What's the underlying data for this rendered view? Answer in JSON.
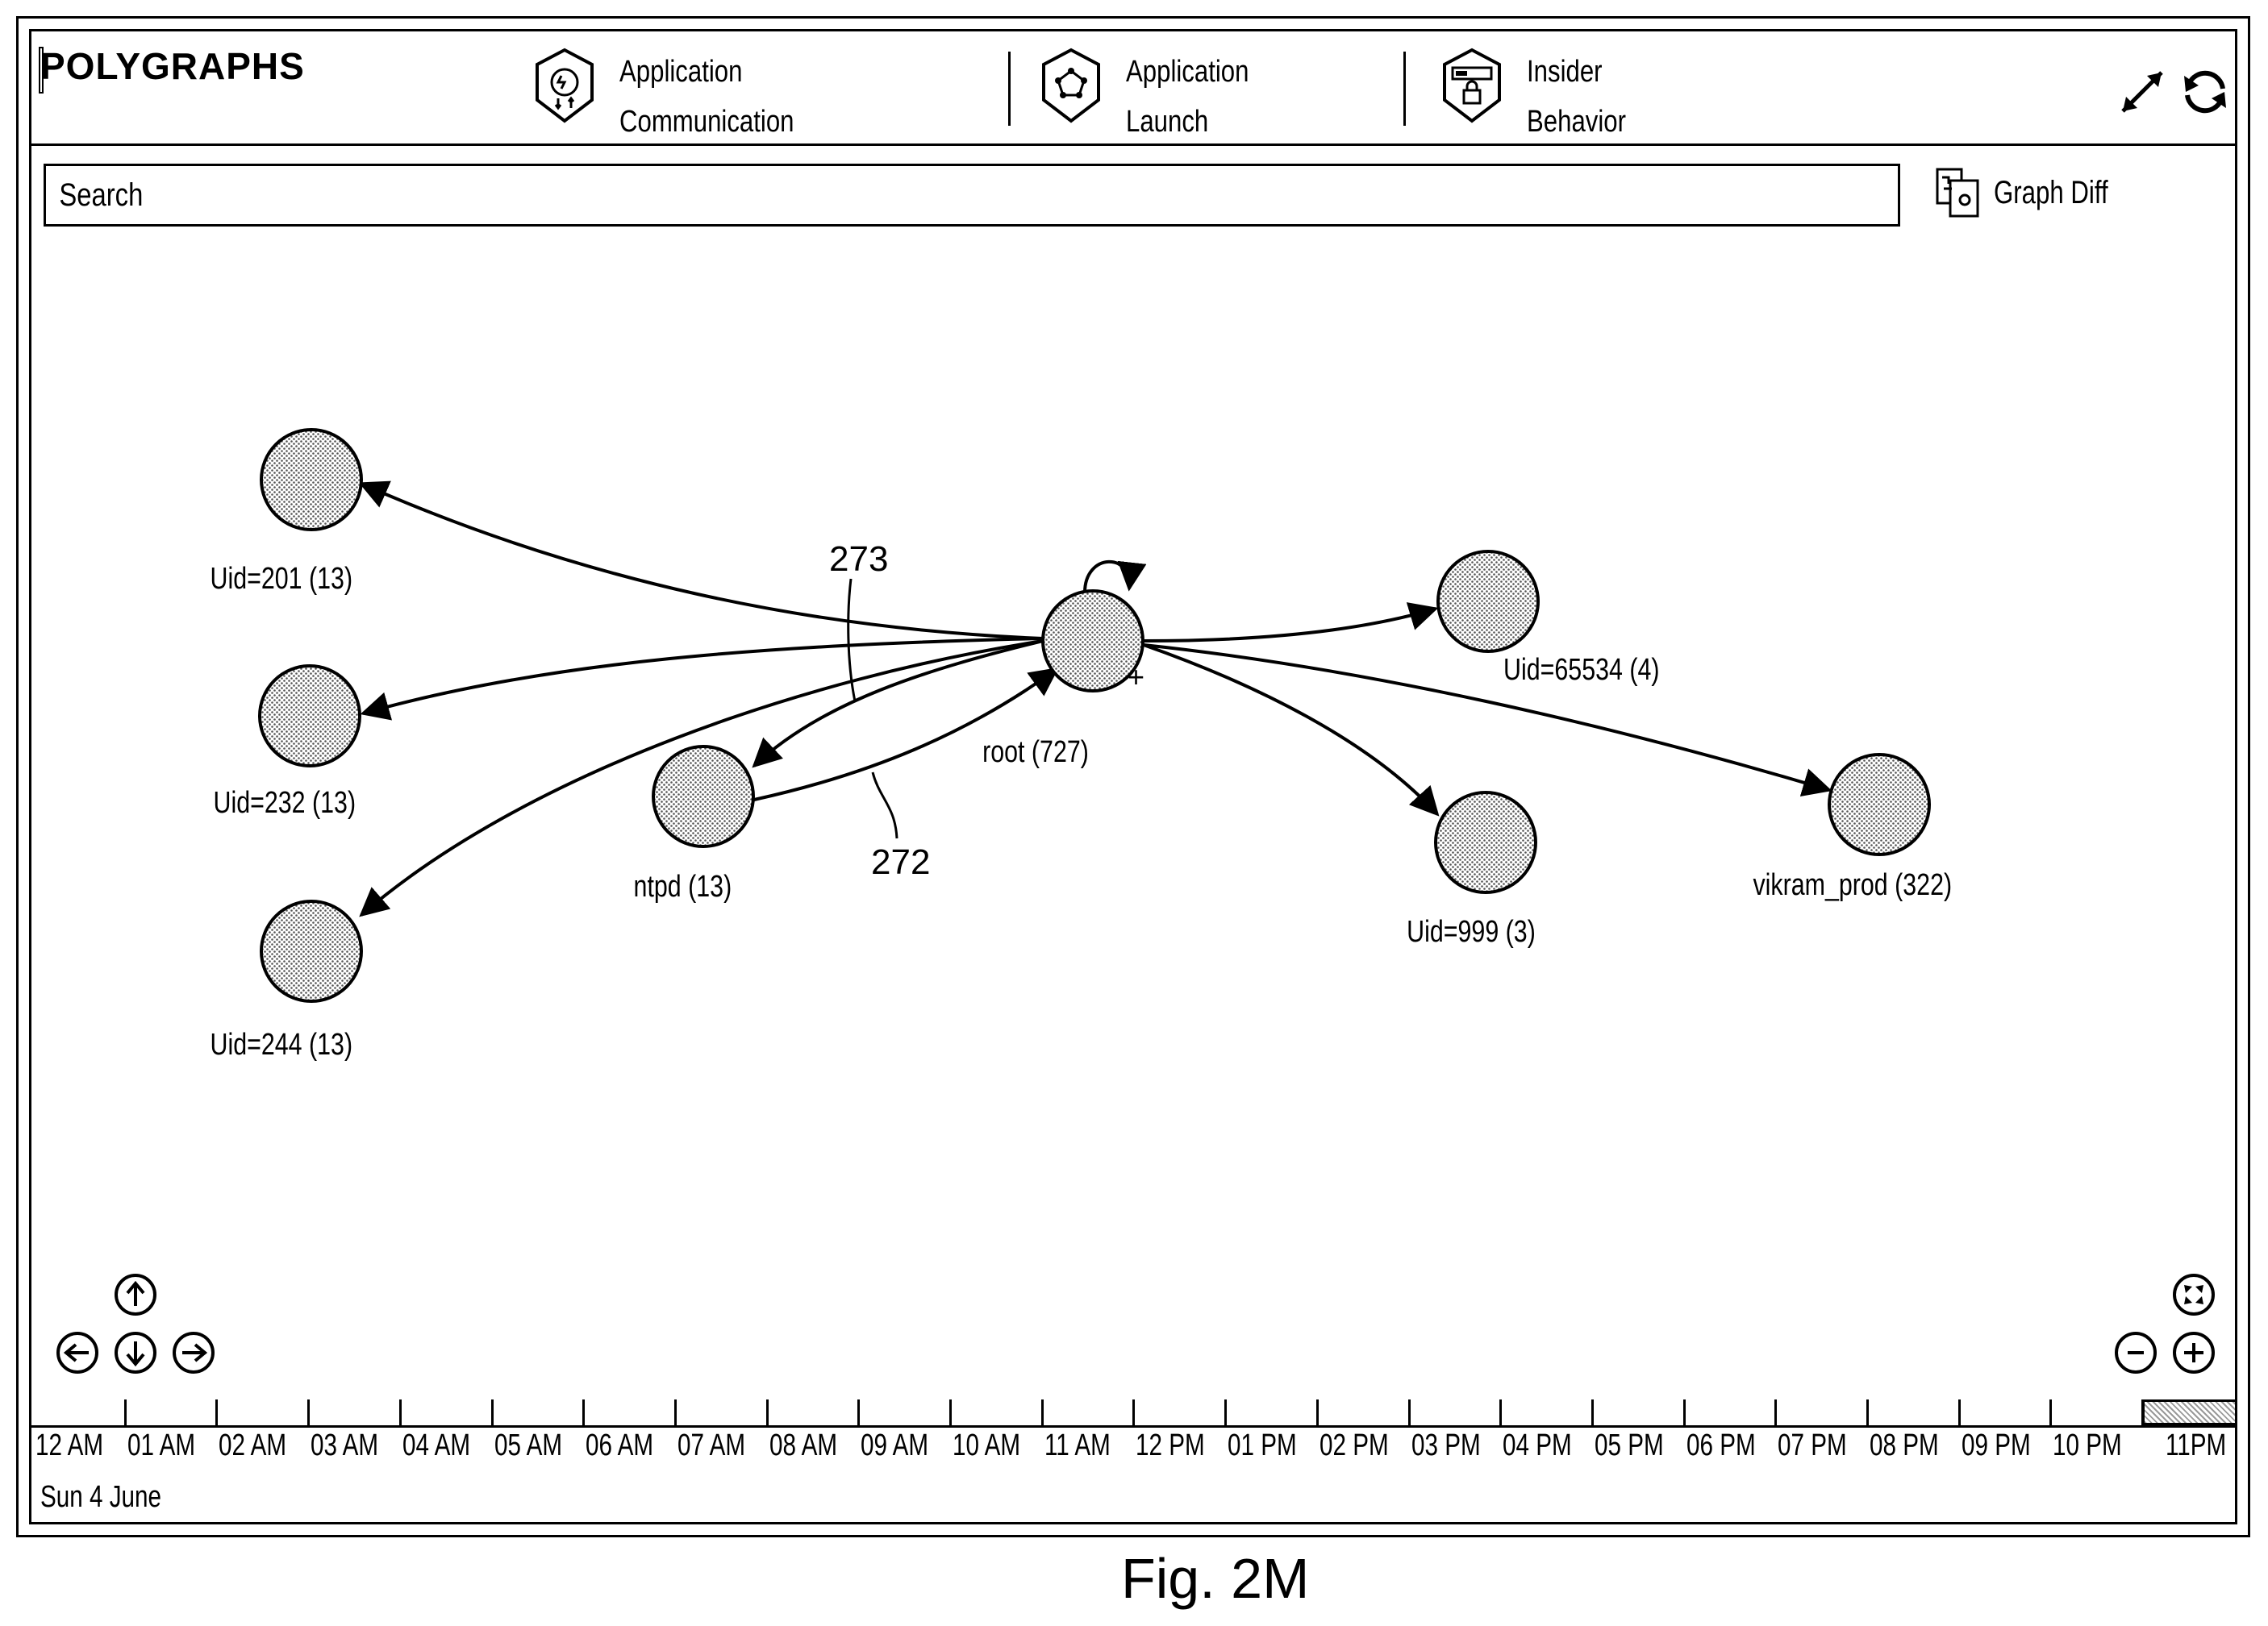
{
  "app": {
    "title": "POLYGRAPHS"
  },
  "tabs": [
    {
      "label": "Application\nCommunication",
      "icon": "application-communication-icon"
    },
    {
      "label": "Application\nLaunch",
      "icon": "application-launch-icon"
    },
    {
      "label": "Insider\nBehavior",
      "icon": "insider-behavior-icon"
    }
  ],
  "header_buttons": {
    "expand": "expand-icon",
    "refresh": "refresh-icon"
  },
  "search": {
    "placeholder": "Search"
  },
  "graph_diff": {
    "label": "Graph Diff",
    "icon": "graph-diff-icon"
  },
  "graph": {
    "nodes": [
      {
        "id": "root",
        "label": "root (727)"
      },
      {
        "id": "uid201",
        "label": "Uid=201 (13)"
      },
      {
        "id": "uid232",
        "label": "Uid=232 (13)"
      },
      {
        "id": "uid244",
        "label": "Uid=244 (13)"
      },
      {
        "id": "ntpd",
        "label": "ntpd (13)"
      },
      {
        "id": "uid65534",
        "label": "Uid=65534 (4)"
      },
      {
        "id": "uid999",
        "label": "Uid=999 (3)"
      },
      {
        "id": "vikram",
        "label": "vikram_prod (322)"
      }
    ],
    "edges": [
      {
        "from": "root",
        "to": "uid201"
      },
      {
        "from": "root",
        "to": "uid232"
      },
      {
        "from": "root",
        "to": "uid244"
      },
      {
        "from": "root",
        "to": "ntpd"
      },
      {
        "from": "ntpd",
        "to": "root"
      },
      {
        "from": "root",
        "to": "uid65534"
      },
      {
        "from": "root",
        "to": "uid999"
      },
      {
        "from": "root",
        "to": "vikram"
      },
      {
        "from": "root",
        "to": "root"
      }
    ],
    "references": {
      "ref_273": "273",
      "ref_272": "272"
    },
    "expand_marker": "+"
  },
  "nav_controls": [
    "arrow-up-icon",
    "arrow-left-icon",
    "arrow-down-icon",
    "arrow-right-icon"
  ],
  "zoom_controls": [
    "fit-screen-icon",
    "zoom-out-icon",
    "zoom-in-icon"
  ],
  "timeline": {
    "hours": [
      "12 AM",
      "01 AM",
      "02 AM",
      "03 AM",
      "04 AM",
      "05 AM",
      "06 AM",
      "07 AM",
      "08 AM",
      "09 AM",
      "10 AM",
      "11 AM",
      "12 PM",
      "01 PM",
      "02 PM",
      "03 PM",
      "04 PM",
      "05 PM",
      "06 PM",
      "07 PM",
      "08 PM",
      "09 PM",
      "10 PM",
      "11PM"
    ],
    "date": "Sun 4 June",
    "selected_hour": "11PM"
  },
  "caption": "Fig. 2M"
}
